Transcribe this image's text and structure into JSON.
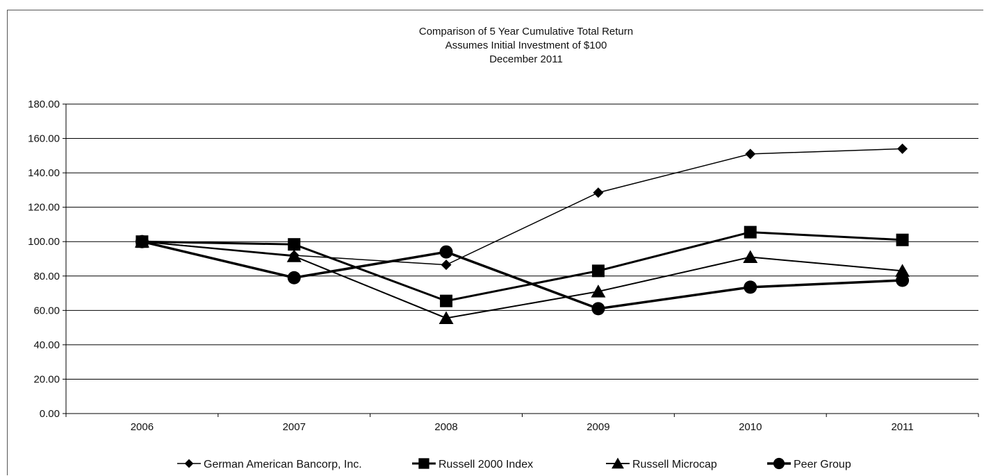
{
  "chart_data": {
    "type": "line",
    "title": [
      "Comparison of 5 Year Cumulative Total Return",
      "Assumes Initial Investment of $100",
      "December 2011"
    ],
    "xlabel": "",
    "ylabel": "",
    "categories": [
      "2006",
      "2007",
      "2008",
      "2009",
      "2010",
      "2011"
    ],
    "ylim": [
      0,
      180
    ],
    "yticks": [
      "0.00",
      "20.00",
      "40.00",
      "60.00",
      "80.00",
      "100.00",
      "120.00",
      "140.00",
      "160.00",
      "180.00"
    ],
    "grid": true,
    "legend_position": "bottom",
    "series": [
      {
        "name": "German American Bancorp, Inc.",
        "marker": "diamond",
        "values": [
          100,
          92,
          86.5,
          128.5,
          151,
          154
        ]
      },
      {
        "name": "Russell 2000 Index",
        "marker": "square",
        "values": [
          100,
          98.4,
          65.5,
          83,
          105.5,
          101
        ]
      },
      {
        "name": "Russell Microcap",
        "marker": "triangle",
        "values": [
          100,
          91.5,
          55.5,
          71,
          91,
          83
        ]
      },
      {
        "name": "Peer Group",
        "marker": "circle",
        "values": [
          100,
          79,
          94,
          61,
          73.5,
          77.5
        ]
      }
    ]
  }
}
